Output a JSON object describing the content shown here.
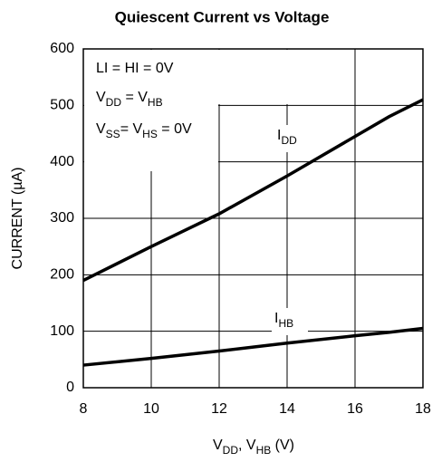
{
  "chart_data": {
    "type": "line",
    "title": "Quiescent Current vs Voltage",
    "ylabel": "CURRENT (µA)",
    "xlabel": [
      {
        "text": "V"
      },
      {
        "text": "DD",
        "sub": true
      },
      {
        "text": ", V"
      },
      {
        "text": "HB",
        "sub": true
      },
      {
        "text": " (V)"
      }
    ],
    "x": [
      8,
      10,
      12,
      14,
      16,
      17,
      18
    ],
    "series": [
      {
        "name": [
          {
            "text": "I"
          },
          {
            "text": "DD",
            "sub": true
          }
        ],
        "color": "#000000",
        "values": [
          190,
          250,
          308,
          375,
          445,
          480,
          510
        ]
      },
      {
        "name": [
          {
            "text": "I"
          },
          {
            "text": "HB",
            "sub": true
          }
        ],
        "color": "#000000",
        "values": [
          40,
          52,
          65,
          79,
          92,
          98,
          105
        ]
      }
    ],
    "annotations": [
      [
        {
          "text": "LI = HI = 0V"
        }
      ],
      [
        {
          "text": "V"
        },
        {
          "text": "DD",
          "sub": true
        },
        {
          "text": " = V"
        },
        {
          "text": "HB",
          "sub": true
        }
      ],
      [
        {
          "text": "V"
        },
        {
          "text": "SS",
          "sub": true
        },
        {
          "text": "= V"
        },
        {
          "text": "HS",
          "sub": true
        },
        {
          "text": " = 0V"
        }
      ]
    ],
    "xlim": [
      8,
      18
    ],
    "xticks": [
      8,
      10,
      12,
      14,
      16,
      18
    ],
    "ylim": [
      0,
      600
    ],
    "yticks": [
      0,
      100,
      200,
      300,
      400,
      500,
      600
    ],
    "grid": true
  }
}
